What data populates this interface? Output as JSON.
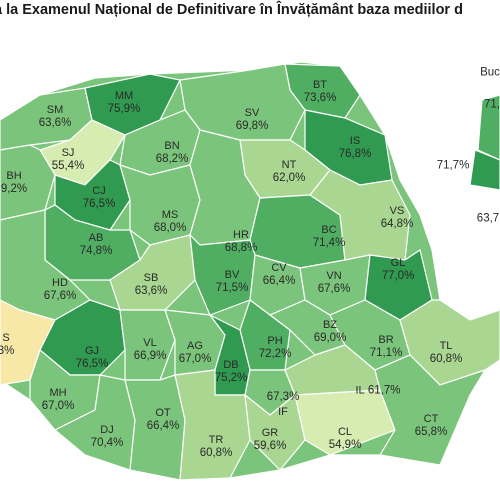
{
  "title": "a la Examenul Național de Definitivare în Învățământ baza mediilor d",
  "colors": {
    "level1": "#d6ecb0",
    "level2": "#a9d690",
    "level3": "#7bc47b",
    "level4": "#4fae62",
    "level5": "#2f9a50",
    "level6": "#f7e8a8",
    "border": "#ffffff"
  },
  "counties": [
    {
      "code": "SM",
      "value": "63,6%"
    },
    {
      "code": "MM",
      "value": "75,9%"
    },
    {
      "code": "BT",
      "value": "73,6%"
    },
    {
      "code": "SV",
      "value": "69,8%"
    },
    {
      "code": "SJ",
      "value": "55,4%"
    },
    {
      "code": "BN",
      "value": "68,2%"
    },
    {
      "code": "BH",
      "value": "9,2%"
    },
    {
      "code": "IS",
      "value": "76,8%"
    },
    {
      "code": "NT",
      "value": "62,0%"
    },
    {
      "code": "CJ",
      "value": "76,5%"
    },
    {
      "code": "MS",
      "value": "68,0%"
    },
    {
      "code": "HR",
      "value": "68,8%"
    },
    {
      "code": "BC",
      "value": "71,4%"
    },
    {
      "code": "VS",
      "value": "64,8%"
    },
    {
      "code": "AB",
      "value": "74,8%"
    },
    {
      "code": "HD",
      "value": "67,6%"
    },
    {
      "code": "SB",
      "value": "63,6%"
    },
    {
      "code": "BV",
      "value": "71,5%"
    },
    {
      "code": "CV",
      "value": "66,4%"
    },
    {
      "code": "VN",
      "value": "67,6%"
    },
    {
      "code": "GL",
      "value": "77,0%"
    },
    {
      "code": "S",
      "value": "3%"
    },
    {
      "code": "GJ",
      "value": "76,5%"
    },
    {
      "code": "VL",
      "value": "66,9%"
    },
    {
      "code": "AG",
      "value": "67,0%"
    },
    {
      "code": "PH",
      "value": "72,2%"
    },
    {
      "code": "BZ",
      "value": "69,0%"
    },
    {
      "code": "BR",
      "value": "71,1%"
    },
    {
      "code": "TL",
      "value": "60,8%"
    },
    {
      "code": "DB",
      "value": "75,2%"
    },
    {
      "code": "MH",
      "value": "67,0%"
    },
    {
      "code": "DJ",
      "value": "70,4%"
    },
    {
      "code": "OT",
      "value": "66,4%"
    },
    {
      "code": "IF",
      "value": "67,3%"
    },
    {
      "code": "IL",
      "value": "61,7%"
    },
    {
      "code": "TR",
      "value": "60,8%"
    },
    {
      "code": "GR",
      "value": "59,6%"
    },
    {
      "code": "CL",
      "value": "54,9%"
    },
    {
      "code": "CT",
      "value": "65,8%"
    }
  ],
  "inset": {
    "label": "Buc",
    "values": [
      "71,",
      "71,7%",
      "63,7"
    ]
  }
}
